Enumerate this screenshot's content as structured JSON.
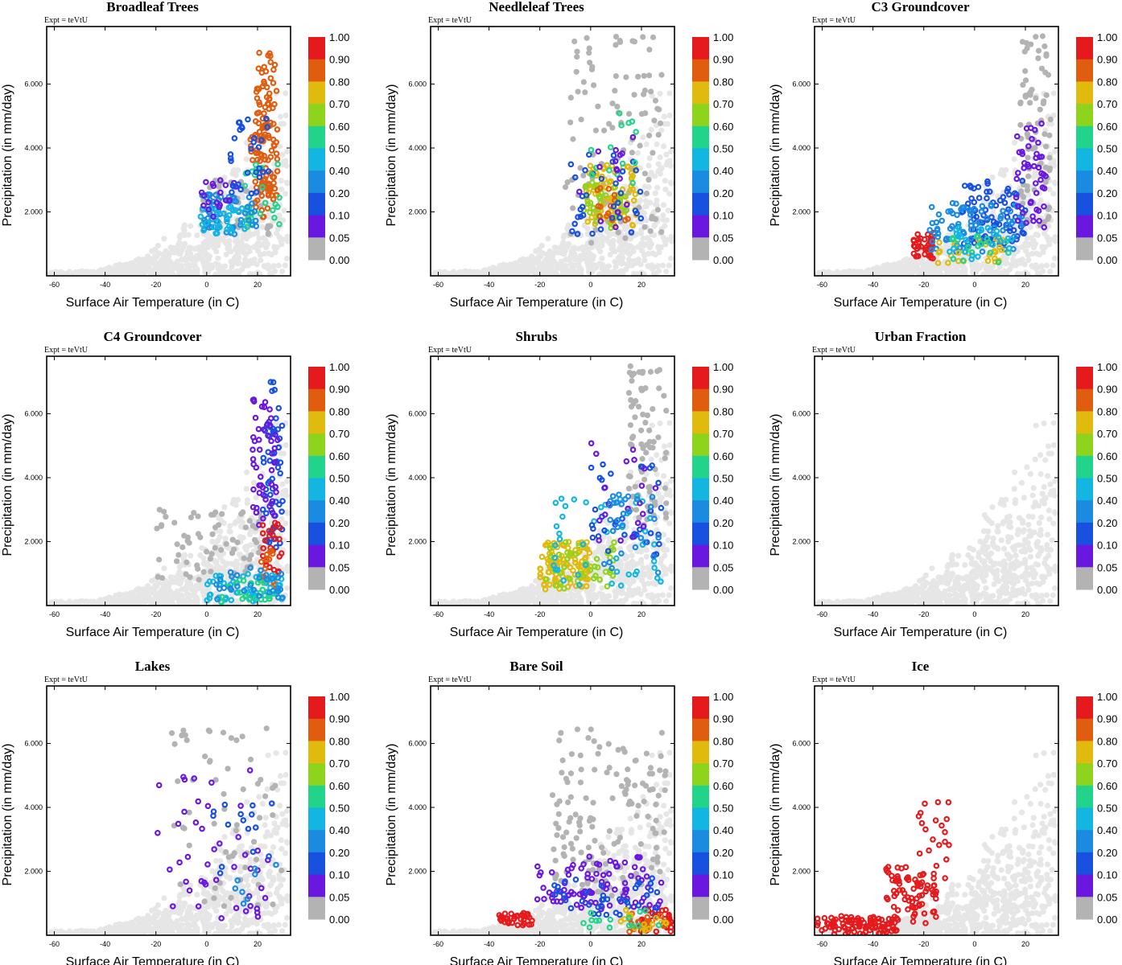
{
  "expt_label": "Expt = teVtU",
  "colorbar": {
    "labels": [
      "1.00",
      "0.90",
      "0.80",
      "0.70",
      "0.60",
      "0.50",
      "0.40",
      "0.20",
      "0.10",
      "0.05",
      "0.00"
    ],
    "colors": [
      "#e41a1c",
      "#e4181a",
      "#e05d10",
      "#e0ba0c",
      "#8fd41c",
      "#22d38c",
      "#12b6e0",
      "#1a8be0",
      "#1850e0",
      "#6a18e0",
      "#b3b3b3"
    ]
  },
  "background_color": "#e6e6e6",
  "chart_data": [
    {
      "type": "scatter",
      "title": "Broadleaf Trees",
      "xlabel": "Surface Air Temperature (in C)",
      "ylabel": "Precipitation (in mm/day)",
      "xticks": [
        "-60",
        "-40",
        "-20",
        "0",
        "20"
      ],
      "yticks": [
        "2.000",
        "4.000",
        "6.000"
      ],
      "xlim": [
        -63,
        33
      ],
      "ylim": [
        0,
        7.8
      ],
      "colored_clusters": [
        {
          "color": "#e05d10",
          "x": [
            19,
            28
          ],
          "y": [
            2.5,
            7.0
          ],
          "n": 90
        },
        {
          "color": "#e05d10",
          "x": [
            17,
            27
          ],
          "y": [
            1.8,
            4.5
          ],
          "n": 40
        },
        {
          "color": "#22d38c",
          "x": [
            15,
            30
          ],
          "y": [
            1.5,
            3.5
          ],
          "n": 25
        },
        {
          "color": "#1a8be0",
          "x": [
            -3,
            20
          ],
          "y": [
            1.3,
            2.6
          ],
          "n": 55
        },
        {
          "color": "#12b6e0",
          "x": [
            -3,
            15
          ],
          "y": [
            1.3,
            2.2
          ],
          "n": 35
        },
        {
          "color": "#6a18e0",
          "x": [
            -2,
            12
          ],
          "y": [
            1.8,
            3.0
          ],
          "n": 20
        },
        {
          "color": "#1850e0",
          "x": [
            8,
            25
          ],
          "y": [
            2.5,
            5.0
          ],
          "n": 30
        }
      ],
      "gray_cluster": {
        "x": [
          -2,
          25
        ],
        "y": [
          1.3,
          3.0
        ],
        "n": 40
      }
    },
    {
      "type": "scatter",
      "title": "Needleleaf Trees",
      "xlabel": "Surface Air Temperature (in C)",
      "ylabel": "Precipitation (in mm/day)",
      "xticks": [
        "-60",
        "-40",
        "-20",
        "0",
        "20"
      ],
      "yticks": [
        "2.000",
        "4.000",
        "6.000"
      ],
      "xlim": [
        -63,
        33
      ],
      "ylim": [
        0,
        7.8
      ],
      "colored_clusters": [
        {
          "color": "#e0ba0c",
          "x": [
            -2,
            18
          ],
          "y": [
            1.5,
            3.5
          ],
          "n": 80
        },
        {
          "color": "#8fd41c",
          "x": [
            -3,
            15
          ],
          "y": [
            1.5,
            3.0
          ],
          "n": 35
        },
        {
          "color": "#e05d10",
          "x": [
            2,
            15
          ],
          "y": [
            1.6,
            3.0
          ],
          "n": 15
        },
        {
          "color": "#1850e0",
          "x": [
            -8,
            20
          ],
          "y": [
            1.3,
            3.8
          ],
          "n": 35
        },
        {
          "color": "#22d38c",
          "x": [
            0,
            18
          ],
          "y": [
            2.8,
            5.2
          ],
          "n": 15
        },
        {
          "color": "#6a18e0",
          "x": [
            -5,
            20
          ],
          "y": [
            1.3,
            4.5
          ],
          "n": 15
        }
      ],
      "gray_cluster": {
        "x": [
          -10,
          28
        ],
        "y": [
          1.0,
          7.5
        ],
        "n": 110
      }
    },
    {
      "type": "scatter",
      "title": "C3 Groundcover",
      "xlabel": "Surface Air Temperature (in C)",
      "ylabel": "Precipitation (in mm/day)",
      "xticks": [
        "-60",
        "-40",
        "-20",
        "0",
        "20"
      ],
      "yticks": [
        "2.000",
        "4.000",
        "6.000"
      ],
      "xlim": [
        -63,
        33
      ],
      "ylim": [
        0,
        7.8
      ],
      "colored_clusters": [
        {
          "color": "#e41a1c",
          "x": [
            -24,
            -16
          ],
          "y": [
            0.5,
            1.4
          ],
          "n": 40
        },
        {
          "color": "#1850e0",
          "x": [
            -5,
            20
          ],
          "y": [
            1.0,
            3.0
          ],
          "n": 80
        },
        {
          "color": "#1a8be0",
          "x": [
            -18,
            20
          ],
          "y": [
            0.7,
            2.3
          ],
          "n": 80
        },
        {
          "color": "#6a18e0",
          "x": [
            16,
            28
          ],
          "y": [
            1.5,
            4.8
          ],
          "n": 45
        },
        {
          "color": "#e0ba0c",
          "x": [
            -15,
            12
          ],
          "y": [
            0.4,
            1.2
          ],
          "n": 25
        },
        {
          "color": "#22d38c",
          "x": [
            -10,
            15
          ],
          "y": [
            0.4,
            1.3
          ],
          "n": 20
        },
        {
          "color": "#12b6e0",
          "x": [
            -10,
            18
          ],
          "y": [
            0.5,
            1.5
          ],
          "n": 25
        }
      ],
      "gray_cluster": {
        "x": [
          18,
          30
        ],
        "y": [
          1.5,
          7.5
        ],
        "n": 80
      }
    },
    {
      "type": "scatter",
      "title": "C4 Groundcover",
      "xlabel": "Surface Air Temperature (in C)",
      "ylabel": "Precipitation (in mm/day)",
      "xticks": [
        "-60",
        "-40",
        "-20",
        "0",
        "20"
      ],
      "yticks": [
        "2.000",
        "4.000",
        "6.000"
      ],
      "xlim": [
        -63,
        33
      ],
      "ylim": [
        0,
        7.8
      ],
      "colored_clusters": [
        {
          "color": "#1850e0",
          "x": [
            22,
            30
          ],
          "y": [
            1.8,
            7.0
          ],
          "n": 60
        },
        {
          "color": "#6a18e0",
          "x": [
            18,
            28
          ],
          "y": [
            2.5,
            6.5
          ],
          "n": 50
        },
        {
          "color": "#e41a1c",
          "x": [
            22,
            30
          ],
          "y": [
            1.0,
            2.6
          ],
          "n": 25
        },
        {
          "color": "#e05d10",
          "x": [
            20,
            28
          ],
          "y": [
            0.6,
            1.8
          ],
          "n": 15
        },
        {
          "color": "#12b6e0",
          "x": [
            0,
            30
          ],
          "y": [
            0.1,
            1.0
          ],
          "n": 55
        },
        {
          "color": "#22d38c",
          "x": [
            5,
            28
          ],
          "y": [
            0.1,
            0.8
          ],
          "n": 25
        },
        {
          "color": "#1a8be0",
          "x": [
            2,
            30
          ],
          "y": [
            0.2,
            1.2
          ],
          "n": 30
        }
      ],
      "gray_cluster": {
        "x": [
          -20,
          22
        ],
        "y": [
          0.8,
          3.0
        ],
        "n": 70
      }
    },
    {
      "type": "scatter",
      "title": "Shrubs",
      "xlabel": "Surface Air Temperature (in C)",
      "ylabel": "Precipitation (in mm/day)",
      "xticks": [
        "-60",
        "-40",
        "-20",
        "0",
        "20"
      ],
      "yticks": [
        "2.000",
        "4.000",
        "6.000"
      ],
      "xlim": [
        -63,
        33
      ],
      "ylim": [
        0,
        7.8
      ],
      "colored_clusters": [
        {
          "color": "#e0ba0c",
          "x": [
            -20,
            0
          ],
          "y": [
            0.5,
            2.0
          ],
          "n": 110
        },
        {
          "color": "#8fd41c",
          "x": [
            -20,
            10
          ],
          "y": [
            0.5,
            2.0
          ],
          "n": 40
        },
        {
          "color": "#12b6e0",
          "x": [
            -15,
            28
          ],
          "y": [
            0.6,
            3.5
          ],
          "n": 45
        },
        {
          "color": "#1850e0",
          "x": [
            0,
            28
          ],
          "y": [
            1.5,
            4.5
          ],
          "n": 35
        },
        {
          "color": "#6a18e0",
          "x": [
            0,
            28
          ],
          "y": [
            2.0,
            5.3
          ],
          "n": 20
        },
        {
          "color": "#1a8be0",
          "x": [
            5,
            28
          ],
          "y": [
            1.0,
            3.5
          ],
          "n": 30
        }
      ],
      "gray_cluster": {
        "x": [
          15,
          30
        ],
        "y": [
          2.5,
          7.5
        ],
        "n": 80
      }
    },
    {
      "type": "scatter",
      "title": "Urban Fraction",
      "xlabel": "Surface Air Temperature (in C)",
      "ylabel": "Precipitation (in mm/day)",
      "xticks": [
        "-60",
        "-40",
        "-20",
        "0",
        "20"
      ],
      "yticks": [
        "2.000",
        "4.000",
        "6.000"
      ],
      "xlim": [
        -63,
        33
      ],
      "ylim": [
        0,
        7.8
      ],
      "colored_clusters": [],
      "gray_cluster": {
        "x": [
          0,
          0
        ],
        "y": [
          0,
          0
        ],
        "n": 0
      }
    },
    {
      "type": "scatter",
      "title": "Lakes",
      "xlabel": "Surface Air Temperature (in C)",
      "ylabel": "Precipitation (in mm/day)",
      "xticks": [
        "-60",
        "-40",
        "-20",
        "0",
        "20"
      ],
      "yticks": [
        "2.000",
        "4.000",
        "6.000"
      ],
      "xlim": [
        -63,
        33
      ],
      "ylim": [
        0,
        7.8
      ],
      "colored_clusters": [
        {
          "color": "#6a18e0",
          "x": [
            -20,
            25
          ],
          "y": [
            0.5,
            5.2
          ],
          "n": 45
        },
        {
          "color": "#1850e0",
          "x": [
            0,
            28
          ],
          "y": [
            1.8,
            4.2
          ],
          "n": 15
        },
        {
          "color": "#1a8be0",
          "x": [
            5,
            30
          ],
          "y": [
            0.3,
            2.5
          ],
          "n": 8
        }
      ],
      "gray_cluster": {
        "x": [
          -15,
          30
        ],
        "y": [
          0.8,
          6.5
        ],
        "n": 60
      }
    },
    {
      "type": "scatter",
      "title": "Bare Soil",
      "xlabel": "Surface Air Temperature (in C)",
      "ylabel": "Precipitation (in mm/day)",
      "xticks": [
        "-60",
        "-40",
        "-20",
        "0",
        "20"
      ],
      "yticks": [
        "2.000",
        "4.000",
        "6.000"
      ],
      "xlim": [
        -63,
        33
      ],
      "ylim": [
        0,
        7.8
      ],
      "colored_clusters": [
        {
          "color": "#e41a1c",
          "x": [
            -36,
            -22
          ],
          "y": [
            0.3,
            0.7
          ],
          "n": 35
        },
        {
          "color": "#6a18e0",
          "x": [
            -22,
            28
          ],
          "y": [
            0.8,
            2.5
          ],
          "n": 90
        },
        {
          "color": "#1850e0",
          "x": [
            -15,
            28
          ],
          "y": [
            0.6,
            1.8
          ],
          "n": 40
        },
        {
          "color": "#e41a1c",
          "x": [
            18,
            32
          ],
          "y": [
            0.1,
            0.8
          ],
          "n": 35
        },
        {
          "color": "#e05d10",
          "x": [
            15,
            30
          ],
          "y": [
            0.1,
            0.7
          ],
          "n": 20
        },
        {
          "color": "#e0ba0c",
          "x": [
            10,
            30
          ],
          "y": [
            0.1,
            0.8
          ],
          "n": 15
        },
        {
          "color": "#22d38c",
          "x": [
            -5,
            30
          ],
          "y": [
            0.2,
            0.8
          ],
          "n": 15
        }
      ],
      "gray_cluster": {
        "x": [
          -15,
          30
        ],
        "y": [
          1.2,
          6.5
        ],
        "n": 150
      }
    },
    {
      "type": "scatter",
      "title": "Ice",
      "xlabel": "Surface Air Temperature (in C)",
      "ylabel": "Precipitation (in mm/day)",
      "xticks": [
        "-60",
        "-40",
        "-20",
        "0",
        "20"
      ],
      "yticks": [
        "2.000",
        "4.000",
        "6.000"
      ],
      "xlim": [
        -63,
        33
      ],
      "ylim": [
        0,
        7.8
      ],
      "colored_clusters": [
        {
          "color": "#e41a1c",
          "x": [
            -62,
            -30
          ],
          "y": [
            0.02,
            0.6
          ],
          "n": 90
        },
        {
          "color": "#e41a1c",
          "x": [
            -35,
            -15
          ],
          "y": [
            0.3,
            2.2
          ],
          "n": 80
        },
        {
          "color": "#e41a1c",
          "x": [
            -22,
            -8
          ],
          "y": [
            1.5,
            4.2
          ],
          "n": 20
        }
      ],
      "gray_cluster": {
        "x": [
          0,
          0
        ],
        "y": [
          0,
          0
        ],
        "n": 0
      }
    }
  ]
}
